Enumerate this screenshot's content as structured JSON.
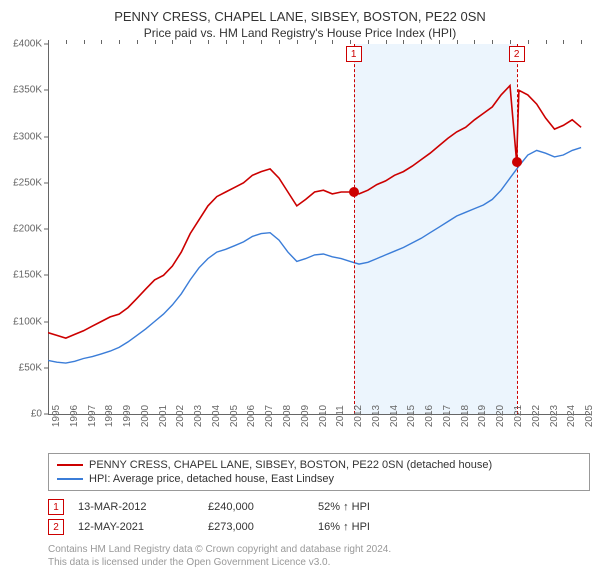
{
  "title": "PENNY CRESS, CHAPEL LANE, SIBSEY, BOSTON, PE22 0SN",
  "subtitle": "Price paid vs. HM Land Registry's House Price Index (HPI)",
  "chart": {
    "type": "line",
    "background_color": "#ffffff",
    "x_range": [
      1995,
      2025.5
    ],
    "y_range": [
      0,
      400000
    ],
    "y_ticks": [
      0,
      50000,
      100000,
      150000,
      200000,
      250000,
      300000,
      350000,
      400000
    ],
    "y_tick_labels": [
      "£0",
      "£50K",
      "£100K",
      "£150K",
      "£200K",
      "£250K",
      "£300K",
      "£350K",
      "£400K"
    ],
    "y_label_fontsize": 10,
    "x_ticks": [
      1995,
      1996,
      1997,
      1998,
      1999,
      2000,
      2001,
      2002,
      2003,
      2004,
      2005,
      2006,
      2007,
      2008,
      2009,
      2010,
      2011,
      2012,
      2013,
      2014,
      2015,
      2016,
      2017,
      2018,
      2019,
      2020,
      2021,
      2022,
      2023,
      2024,
      2025
    ],
    "x_tick_labels": [
      "1995",
      "1996",
      "1997",
      "1998",
      "1999",
      "2000",
      "2001",
      "2002",
      "2003",
      "2004",
      "2005",
      "2006",
      "2007",
      "2008",
      "2009",
      "2010",
      "2011",
      "2012",
      "2013",
      "2014",
      "2015",
      "2016",
      "2017",
      "2018",
      "2019",
      "2020",
      "2021",
      "2022",
      "2023",
      "2024",
      "2025"
    ],
    "shaded_region": {
      "x_start": 2012.2,
      "x_end": 2021.37,
      "color": "#e0eefb"
    },
    "markers": [
      {
        "label": "1",
        "x": 2012.2,
        "point_y": 240000
      },
      {
        "label": "2",
        "x": 2021.37,
        "point_y": 273000
      }
    ],
    "axis_color": "#666666",
    "series": [
      {
        "name": "PENNY CRESS, CHAPEL LANE, SIBSEY, BOSTON, PE22 0SN (detached house)",
        "color": "#cc0000",
        "line_width": 1.6,
        "data": [
          [
            1995,
            88000
          ],
          [
            1995.5,
            85000
          ],
          [
            1996,
            82000
          ],
          [
            1996.5,
            86000
          ],
          [
            1997,
            90000
          ],
          [
            1997.5,
            95000
          ],
          [
            1998,
            100000
          ],
          [
            1998.5,
            105000
          ],
          [
            1999,
            108000
          ],
          [
            1999.5,
            115000
          ],
          [
            2000,
            125000
          ],
          [
            2000.5,
            135000
          ],
          [
            2001,
            145000
          ],
          [
            2001.5,
            150000
          ],
          [
            2002,
            160000
          ],
          [
            2002.5,
            175000
          ],
          [
            2003,
            195000
          ],
          [
            2003.5,
            210000
          ],
          [
            2004,
            225000
          ],
          [
            2004.5,
            235000
          ],
          [
            2005,
            240000
          ],
          [
            2005.5,
            245000
          ],
          [
            2006,
            250000
          ],
          [
            2006.5,
            258000
          ],
          [
            2007,
            262000
          ],
          [
            2007.5,
            265000
          ],
          [
            2008,
            255000
          ],
          [
            2008.5,
            240000
          ],
          [
            2009,
            225000
          ],
          [
            2009.5,
            232000
          ],
          [
            2010,
            240000
          ],
          [
            2010.5,
            242000
          ],
          [
            2011,
            238000
          ],
          [
            2011.5,
            240000
          ],
          [
            2012,
            240000
          ],
          [
            2012.2,
            240000
          ],
          [
            2012.5,
            238000
          ],
          [
            2013,
            242000
          ],
          [
            2013.5,
            248000
          ],
          [
            2014,
            252000
          ],
          [
            2014.5,
            258000
          ],
          [
            2015,
            262000
          ],
          [
            2015.5,
            268000
          ],
          [
            2016,
            275000
          ],
          [
            2016.5,
            282000
          ],
          [
            2017,
            290000
          ],
          [
            2017.5,
            298000
          ],
          [
            2018,
            305000
          ],
          [
            2018.5,
            310000
          ],
          [
            2019,
            318000
          ],
          [
            2019.5,
            325000
          ],
          [
            2020,
            332000
          ],
          [
            2020.5,
            345000
          ],
          [
            2021,
            355000
          ],
          [
            2021.37,
            273000
          ],
          [
            2021.5,
            350000
          ],
          [
            2022,
            345000
          ],
          [
            2022.5,
            335000
          ],
          [
            2023,
            320000
          ],
          [
            2023.5,
            308000
          ],
          [
            2024,
            312000
          ],
          [
            2024.5,
            318000
          ],
          [
            2025,
            310000
          ]
        ]
      },
      {
        "name": "HPI: Average price, detached house, East Lindsey",
        "color": "#3b7dd8",
        "line_width": 1.4,
        "data": [
          [
            1995,
            58000
          ],
          [
            1995.5,
            56000
          ],
          [
            1996,
            55000
          ],
          [
            1996.5,
            57000
          ],
          [
            1997,
            60000
          ],
          [
            1997.5,
            62000
          ],
          [
            1998,
            65000
          ],
          [
            1998.5,
            68000
          ],
          [
            1999,
            72000
          ],
          [
            1999.5,
            78000
          ],
          [
            2000,
            85000
          ],
          [
            2000.5,
            92000
          ],
          [
            2001,
            100000
          ],
          [
            2001.5,
            108000
          ],
          [
            2002,
            118000
          ],
          [
            2002.5,
            130000
          ],
          [
            2003,
            145000
          ],
          [
            2003.5,
            158000
          ],
          [
            2004,
            168000
          ],
          [
            2004.5,
            175000
          ],
          [
            2005,
            178000
          ],
          [
            2005.5,
            182000
          ],
          [
            2006,
            186000
          ],
          [
            2006.5,
            192000
          ],
          [
            2007,
            195000
          ],
          [
            2007.5,
            196000
          ],
          [
            2008,
            188000
          ],
          [
            2008.5,
            175000
          ],
          [
            2009,
            165000
          ],
          [
            2009.5,
            168000
          ],
          [
            2010,
            172000
          ],
          [
            2010.5,
            173000
          ],
          [
            2011,
            170000
          ],
          [
            2011.5,
            168000
          ],
          [
            2012,
            165000
          ],
          [
            2012.5,
            162000
          ],
          [
            2013,
            164000
          ],
          [
            2013.5,
            168000
          ],
          [
            2014,
            172000
          ],
          [
            2014.5,
            176000
          ],
          [
            2015,
            180000
          ],
          [
            2015.5,
            185000
          ],
          [
            2016,
            190000
          ],
          [
            2016.5,
            196000
          ],
          [
            2017,
            202000
          ],
          [
            2017.5,
            208000
          ],
          [
            2018,
            214000
          ],
          [
            2018.5,
            218000
          ],
          [
            2019,
            222000
          ],
          [
            2019.5,
            226000
          ],
          [
            2020,
            232000
          ],
          [
            2020.5,
            242000
          ],
          [
            2021,
            255000
          ],
          [
            2021.5,
            268000
          ],
          [
            2022,
            280000
          ],
          [
            2022.5,
            285000
          ],
          [
            2023,
            282000
          ],
          [
            2023.5,
            278000
          ],
          [
            2024,
            280000
          ],
          [
            2024.5,
            285000
          ],
          [
            2025,
            288000
          ]
        ]
      }
    ]
  },
  "legend": {
    "items": [
      {
        "color": "#cc0000",
        "label": "PENNY CRESS, CHAPEL LANE, SIBSEY, BOSTON, PE22 0SN (detached house)"
      },
      {
        "color": "#3b7dd8",
        "label": "HPI: Average price, detached house, East Lindsey"
      }
    ]
  },
  "sales": [
    {
      "badge": "1",
      "date": "13-MAR-2012",
      "price": "£240,000",
      "delta": "52% ↑ HPI"
    },
    {
      "badge": "2",
      "date": "12-MAY-2021",
      "price": "£273,000",
      "delta": "16% ↑ HPI"
    }
  ],
  "footer": {
    "line1": "Contains HM Land Registry data © Crown copyright and database right 2024.",
    "line2": "This data is licensed under the Open Government Licence v3.0."
  }
}
